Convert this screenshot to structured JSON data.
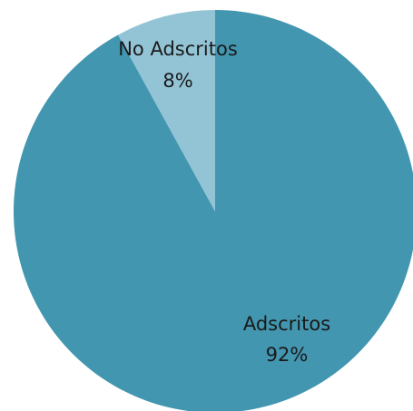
{
  "chart_data": {
    "type": "pie",
    "title": "",
    "categories": [
      "Adscritos",
      "No Adscritos"
    ],
    "values": [
      92,
      8
    ],
    "value_labels": [
      "92%",
      "8%"
    ],
    "colors": [
      "#4296AF",
      "#93C4D6"
    ],
    "start_angle_deg": 0,
    "direction": "clockwise"
  }
}
